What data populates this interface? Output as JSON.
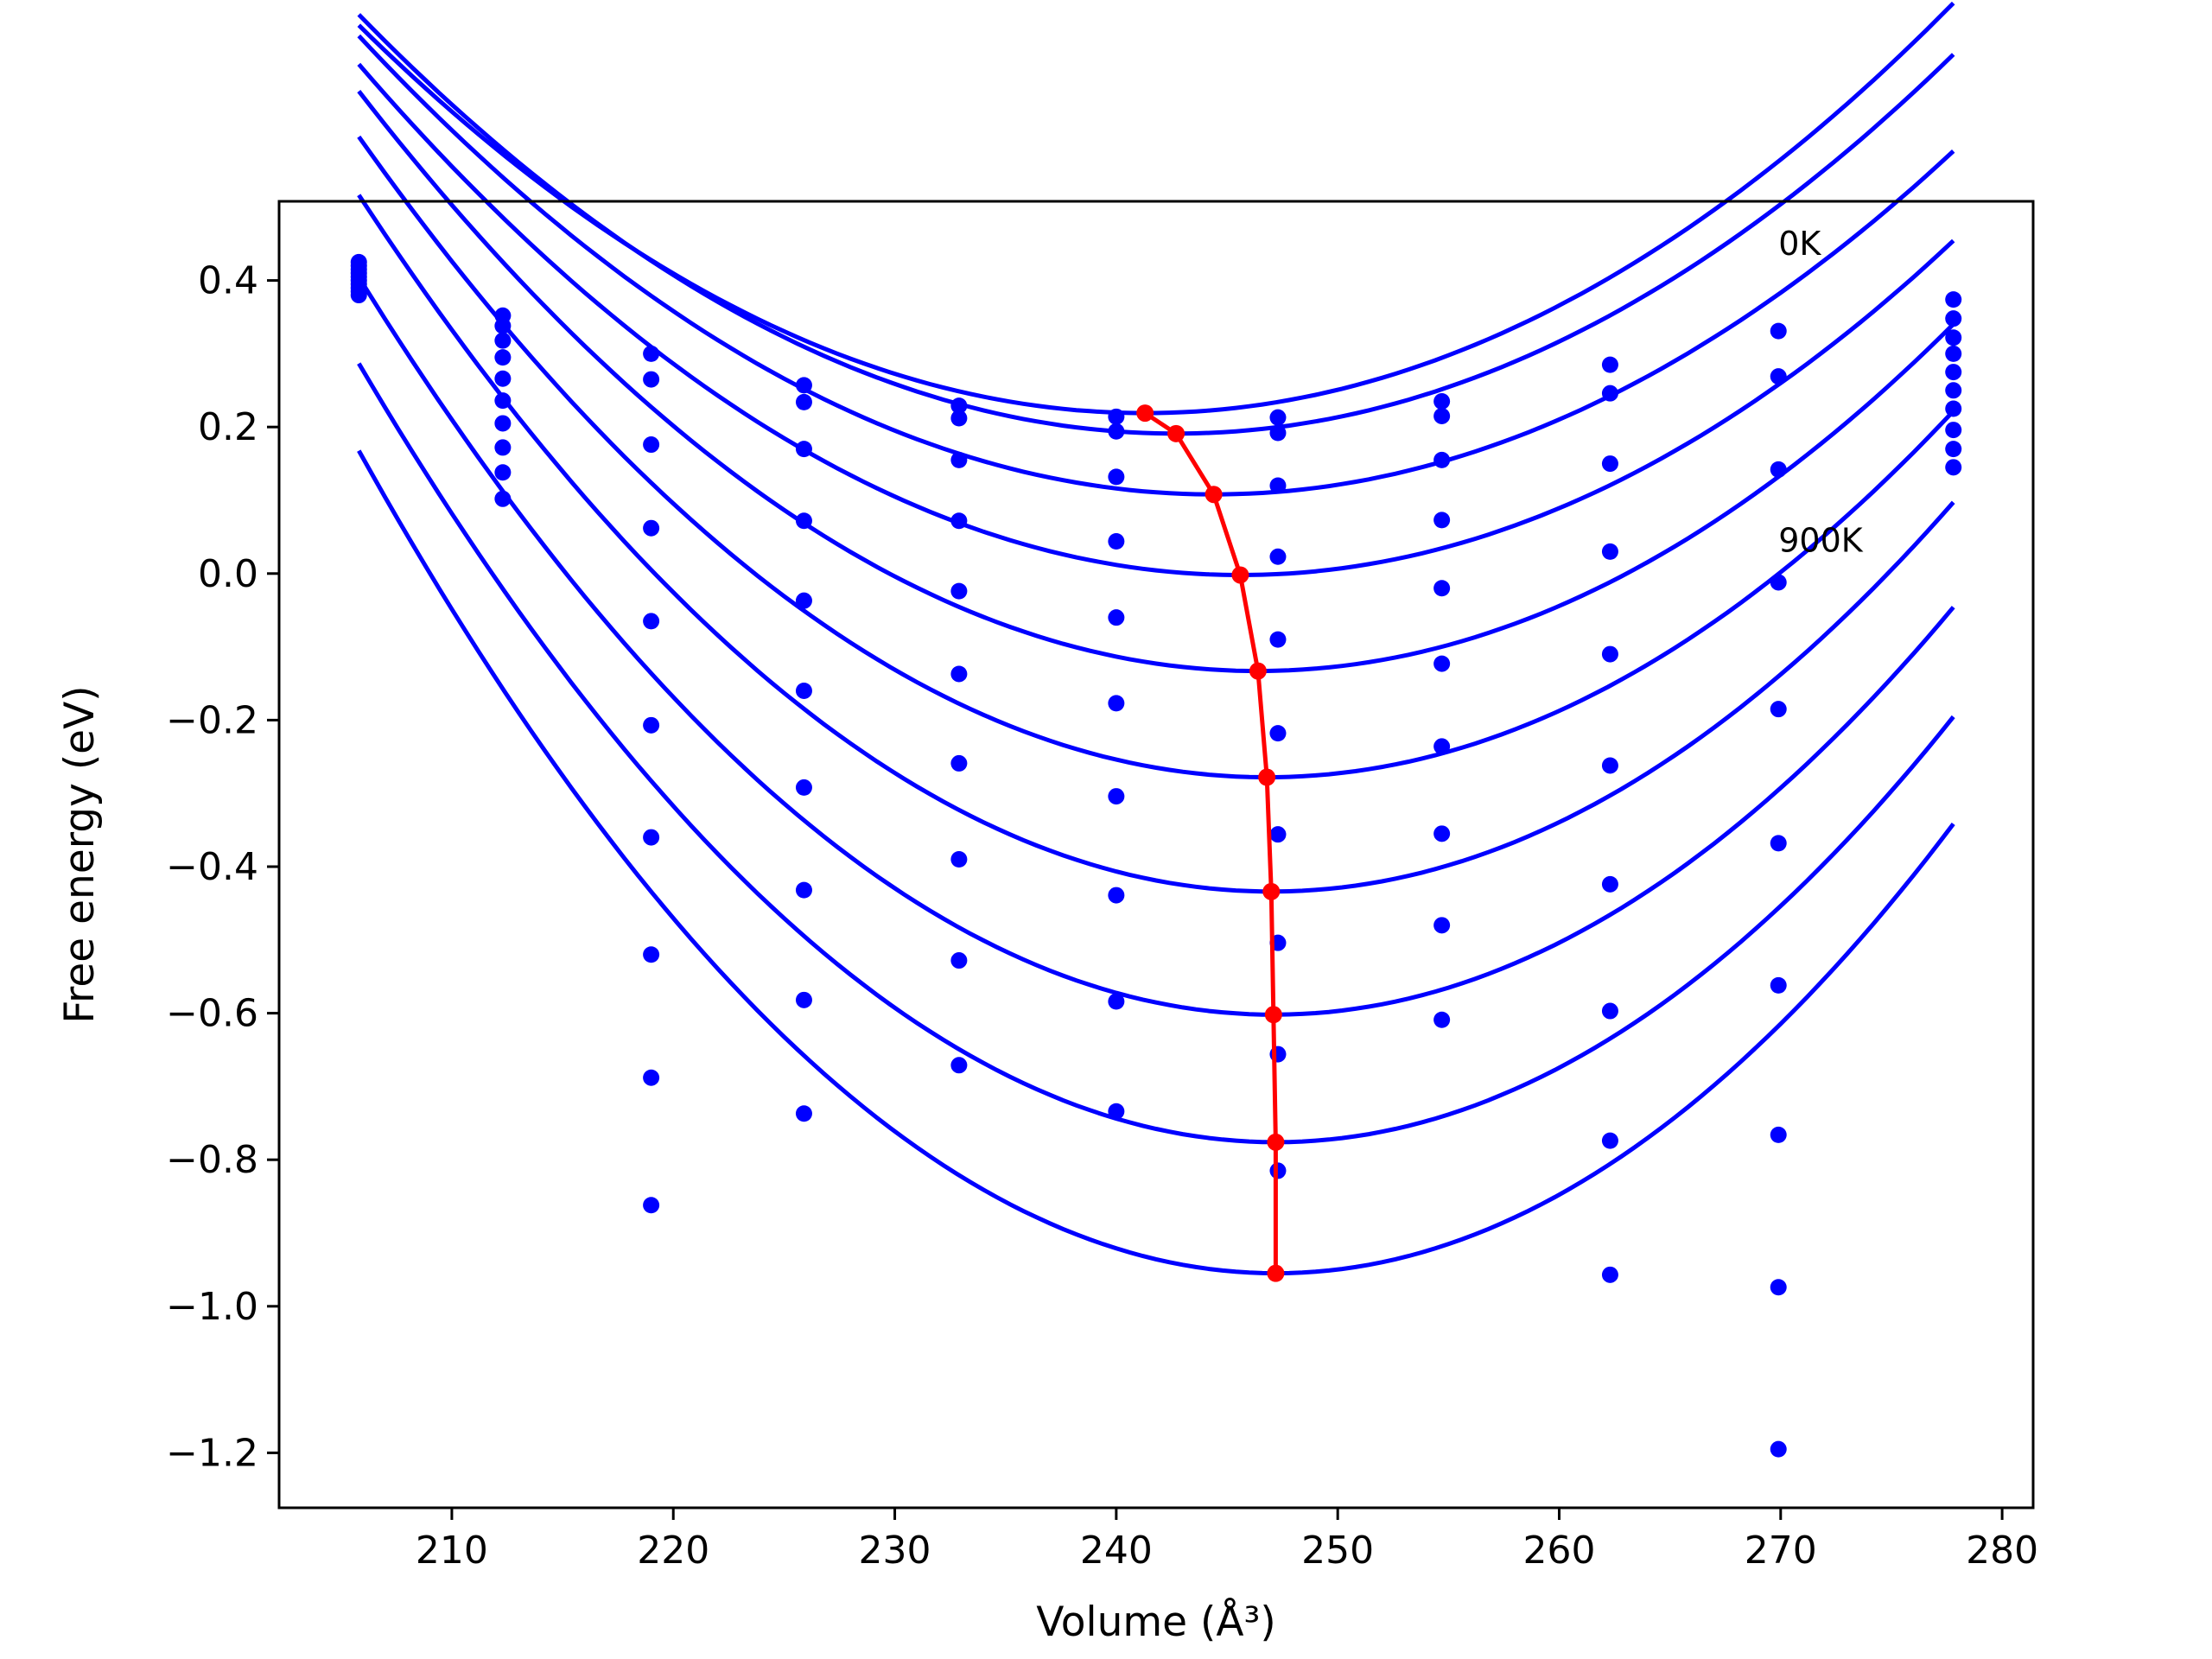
{
  "chart_data": {
    "type": "scatter",
    "xlabel": "Volume (Å³)",
    "ylabel": "Free energy (eV)",
    "xlim": [
      202.2,
      281.4
    ],
    "ylim": [
      -1.275,
      0.508
    ],
    "xticks": [
      210,
      220,
      230,
      240,
      250,
      260,
      270,
      280
    ],
    "xtick_labels": [
      "210",
      "220",
      "230",
      "240",
      "250",
      "260",
      "270",
      "280"
    ],
    "yticks": [
      0.4,
      0.2,
      0.0,
      -0.2,
      -0.4,
      -0.6,
      -0.8,
      -1.0,
      -1.2
    ],
    "ytick_labels": [
      "0.4",
      "0.2",
      "0.0",
      "−0.2",
      "−0.4",
      "−0.6",
      "−0.8",
      "−1.0",
      "−1.2"
    ],
    "grid": false,
    "colors": {
      "data": "#0000ff",
      "minima": "#ff0000",
      "frame": "#000000"
    },
    "annotations": [
      {
        "text": "0K",
        "x": 269.9,
        "y": 0.435
      },
      {
        "text": "900K",
        "x": 269.9,
        "y": 0.03
      }
    ],
    "volumes": [
      205.8,
      212.3,
      219.0,
      225.9,
      232.9,
      240.0,
      247.3,
      254.7,
      262.3,
      269.9,
      277.8
    ],
    "fit_x_range": [
      205.8,
      277.8
    ],
    "series": [
      {
        "fit": {
          "v_min": 241.3,
          "f_min": 0.219,
          "k": 0.00042
        },
        "values": [
          0.425,
          0.352,
          0.3,
          0.257,
          0.229,
          0.214,
          0.213,
          0.235,
          0.285,
          0.331,
          0.374
        ]
      },
      {
        "fit": {
          "v_min": 242.7,
          "f_min": 0.191,
          "k": 0.00042
        },
        "values": [
          0.42,
          0.338,
          0.265,
          0.234,
          0.212,
          0.194,
          0.192,
          0.215,
          0.246,
          0.269,
          0.348
        ]
      },
      {
        "fit": {
          "v_min": 244.4,
          "f_min": 0.108,
          "k": 0.00042
        },
        "values": [
          0.415,
          0.318,
          0.176,
          0.17,
          0.155,
          0.132,
          0.12,
          0.155,
          0.15,
          0.142,
          0.322
        ]
      },
      {
        "fit": {
          "v_min": 245.6,
          "f_min": -0.002,
          "k": 0.00044
        },
        "values": [
          0.41,
          0.295,
          0.062,
          0.072,
          0.072,
          0.044,
          0.023,
          0.073,
          0.03,
          -0.012,
          0.3
        ]
      },
      {
        "fit": {
          "v_min": 246.4,
          "f_min": -0.133,
          "k": 0.00048
        },
        "values": [
          0.405,
          0.266,
          -0.065,
          -0.037,
          -0.024,
          -0.06,
          -0.09,
          -0.02,
          -0.11,
          -0.185,
          0.275
        ]
      },
      {
        "fit": {
          "v_min": 246.8,
          "f_min": -0.278,
          "k": 0.00052
        },
        "values": [
          0.4,
          0.236,
          -0.207,
          -0.16,
          -0.137,
          -0.177,
          -0.218,
          -0.123,
          -0.262,
          -0.368,
          0.25
        ]
      },
      {
        "fit": {
          "v_min": 247.0,
          "f_min": -0.434,
          "k": 0.00056
        },
        "values": [
          0.395,
          0.205,
          -0.36,
          -0.292,
          -0.259,
          -0.304,
          -0.356,
          -0.236,
          -0.424,
          -0.562,
          0.225
        ]
      },
      {
        "fit": {
          "v_min": 247.1,
          "f_min": -0.602,
          "k": 0.00059
        },
        "values": [
          0.39,
          0.172,
          -0.52,
          -0.432,
          -0.39,
          -0.439,
          -0.504,
          -0.355,
          -0.597,
          -0.766,
          0.196
        ]
      },
      {
        "fit": {
          "v_min": 247.2,
          "f_min": -0.776,
          "k": 0.00062
        },
        "values": [
          0.385,
          0.138,
          -0.688,
          -0.582,
          -0.528,
          -0.584,
          -0.656,
          -0.48,
          -0.774,
          -0.974,
          0.17
        ]
      },
      {
        "fit": {
          "v_min": 247.2,
          "f_min": -0.955,
          "k": 0.000655
        },
        "values": [
          0.38,
          0.102,
          -0.862,
          -0.737,
          -0.671,
          -0.734,
          -0.815,
          -0.609,
          -0.957,
          -1.195,
          0.145
        ]
      }
    ],
    "minima": {
      "x": [
        241.3,
        242.7,
        244.4,
        245.6,
        246.4,
        246.8,
        247.0,
        247.1,
        247.2,
        247.2
      ],
      "y": [
        0.219,
        0.191,
        0.108,
        -0.002,
        -0.133,
        -0.278,
        -0.434,
        -0.602,
        -0.776,
        -0.955
      ]
    }
  }
}
